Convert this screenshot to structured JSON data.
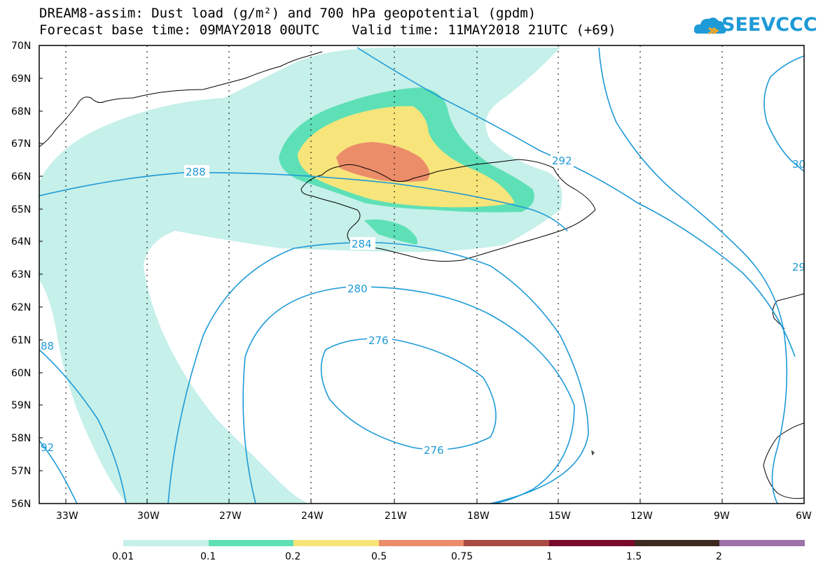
{
  "header": {
    "title_line1": "DREAM8-assim: Dust load (g/m²) and 700 hPa geopotential (gpdm)",
    "title_line2": "Forecast base time: 09MAY2018 00UTC    Valid time: 11MAY2018 21UTC (+69)"
  },
  "logo": {
    "text": "SEEVCCC",
    "icon": "cloud-logo-icon"
  },
  "axes": {
    "lat_labels": [
      "70N",
      "69N",
      "68N",
      "67N",
      "66N",
      "65N",
      "64N",
      "63N",
      "62N",
      "61N",
      "60N",
      "59N",
      "58N",
      "57N",
      "56N"
    ],
    "lon_labels": [
      "33W",
      "30W",
      "27W",
      "24W",
      "21W",
      "18W",
      "15W",
      "12W",
      "9W",
      "6W"
    ]
  },
  "contours": {
    "labels": [
      {
        "id": "c288",
        "text": "288"
      },
      {
        "id": "c292",
        "text": "292"
      },
      {
        "id": "c284",
        "text": "284"
      },
      {
        "id": "c280",
        "text": "280"
      },
      {
        "id": "c276a",
        "text": "276"
      },
      {
        "id": "c276b",
        "text": "276"
      },
      {
        "id": "c88",
        "text": "88"
      },
      {
        "id": "c92",
        "text": "92"
      },
      {
        "id": "c30",
        "text": "30"
      },
      {
        "id": "c29",
        "text": "29"
      }
    ],
    "color": "#1e9ad6"
  },
  "colorbar": {
    "labels": [
      "0.01",
      "0.1",
      "0.2",
      "0.5",
      "0.75",
      "1",
      "1.5",
      "2"
    ],
    "colors": [
      "#c6f0ea",
      "#5ee0b6",
      "#f7e57b",
      "#ec8d6a",
      "#a94b44",
      "#7a0a2c",
      "#3d2a20",
      "#9c72a8"
    ]
  }
}
